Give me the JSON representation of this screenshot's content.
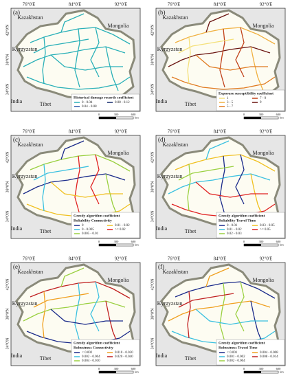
{
  "longitudes": [
    "76°0'E",
    "84°0'E",
    "92°0'E"
  ],
  "latitudes": [
    "42°0'N",
    "38°0'N",
    "34°0'N"
  ],
  "countries": {
    "kazakhstan": "Kazakhstan",
    "mongolia": "Mongolia",
    "kyrgyzstan": "Kyrgyzstan",
    "india": "India",
    "tibet": "Tibet"
  },
  "scale": {
    "ticks": [
      0,
      300,
      600
    ],
    "unit": "km"
  },
  "panels": [
    {
      "label": "(a)",
      "legend_title": [
        "Historical damage records coefficient"
      ],
      "legend": [
        {
          "label": "0 - 0.04",
          "color": "#2ab0b8"
        },
        {
          "label": "0.04 - 0.08",
          "color": "#2a58a8"
        },
        {
          "label": "0.08 - 0.12",
          "color": "#142a6e"
        }
      ]
    },
    {
      "label": "(b)",
      "legend_title": [
        "Exposure susceptibility coefficient"
      ],
      "legend": [
        {
          "label": "1",
          "color": "#f4e07a"
        },
        {
          "label": "3 - 5",
          "color": "#f0b040"
        },
        {
          "label": "5 - 7",
          "color": "#e07a20"
        },
        {
          "label": "7 - 9",
          "color": "#c04018"
        },
        {
          "label": "9",
          "color": "#6a1410"
        }
      ]
    },
    {
      "label": "(c)",
      "legend_title": [
        "Greedy algorithm coefficient",
        "Reliability Connectivity"
      ],
      "legend": [
        {
          "label": "0",
          "color": "#1a2a8a"
        },
        {
          "label": "0 - 0.005",
          "color": "#3ac0e0"
        },
        {
          "label": "0.005 - 0.01",
          "color": "#9ad040"
        },
        {
          "label": "0.01 - 0.02",
          "color": "#f0c020"
        },
        {
          "label": ">= 0.02",
          "color": "#e02020"
        }
      ]
    },
    {
      "label": "(d)",
      "legend_title": [
        "Greedy algorithm coefficient",
        "Reliability Travel Time"
      ],
      "legend": [
        {
          "label": "0 - 0.01",
          "color": "#1a2a8a"
        },
        {
          "label": "0.01 - 0.02",
          "color": "#3ac0e0"
        },
        {
          "label": "0.02 - 0.03",
          "color": "#9ad040"
        },
        {
          "label": "0.03 - 0.05",
          "color": "#f0c020"
        },
        {
          "label": ">= 0.05",
          "color": "#e02020"
        }
      ]
    },
    {
      "label": "(e)",
      "legend_title": [
        "Greedy algorithm coefficient",
        "Robustness Connectivity"
      ],
      "legend": [
        {
          "label": "< 0.002",
          "color": "#1a2a8a"
        },
        {
          "label": "0.002 - 0.004",
          "color": "#3ac0e0"
        },
        {
          "label": "0.004 - 0.010",
          "color": "#9ad040"
        },
        {
          "label": "0.010 - 0.020",
          "color": "#f0a020"
        },
        {
          "label": "0.020 - 0.040",
          "color": "#c02020"
        }
      ]
    },
    {
      "label": "(f)",
      "legend_title": [
        "Greedy algorithm coefficient",
        "Robustness Travel Time"
      ],
      "legend": [
        {
          "label": "< 0.001",
          "color": "#1a2a8a"
        },
        {
          "label": "0.001 - 0.002",
          "color": "#3ac0e0"
        },
        {
          "label": "0.002 - 0.004",
          "color": "#9ad040"
        },
        {
          "label": "0.004 - 0.008",
          "color": "#f0a020"
        },
        {
          "label": "0.008 - 0.014",
          "color": "#c02020"
        }
      ]
    }
  ]
}
